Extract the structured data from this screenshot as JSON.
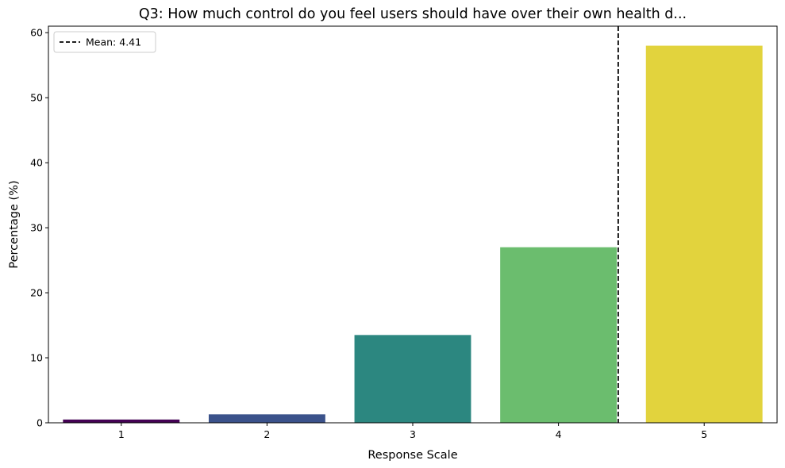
{
  "chart_data": {
    "type": "bar",
    "title": "Q3: How much control do you feel users should have over their own health d...",
    "xlabel": "Response Scale",
    "ylabel": "Percentage (%)",
    "categories": [
      "1",
      "2",
      "3",
      "4",
      "5"
    ],
    "values": [
      0.5,
      1.3,
      13.5,
      27.0,
      58.0
    ],
    "colors": [
      "#440154",
      "#3b528b",
      "#2c8780",
      "#6bbd6e",
      "#e2d33d"
    ],
    "ylim": [
      0,
      61
    ],
    "yticks": [
      0,
      10,
      20,
      30,
      40,
      50,
      60
    ],
    "grid": false,
    "mean_line": {
      "value": 4.41,
      "label": "Mean: 4.41",
      "style": "dashed",
      "color": "#000000"
    },
    "legend": {
      "placement": "top-left",
      "entries": [
        "Mean: 4.41"
      ]
    }
  }
}
